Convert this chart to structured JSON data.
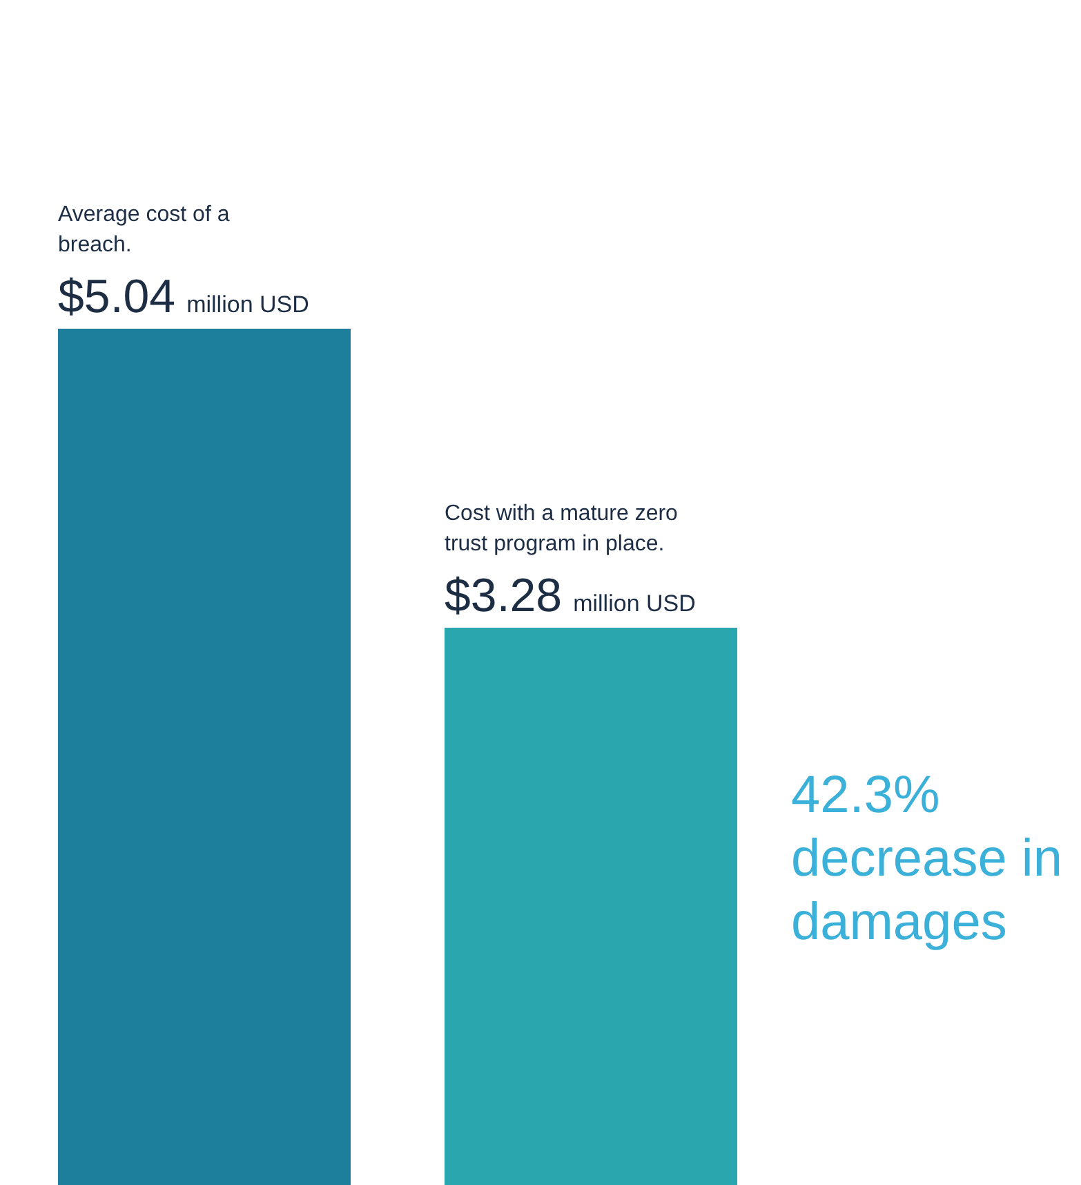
{
  "chart_data": {
    "type": "bar",
    "categories": [
      null,
      null
    ],
    "values": [
      5.04,
      3.28
    ],
    "colors": [
      "#1e7f9c",
      "#2aa6ae"
    ],
    "value_labels": [
      "$5.04 million USD",
      "$3.28 million USD"
    ],
    "annotations": [
      "Average cost of a breach.",
      "Cost with a mature zero trust program in place.",
      "42.3% decrease in damages"
    ]
  }
}
